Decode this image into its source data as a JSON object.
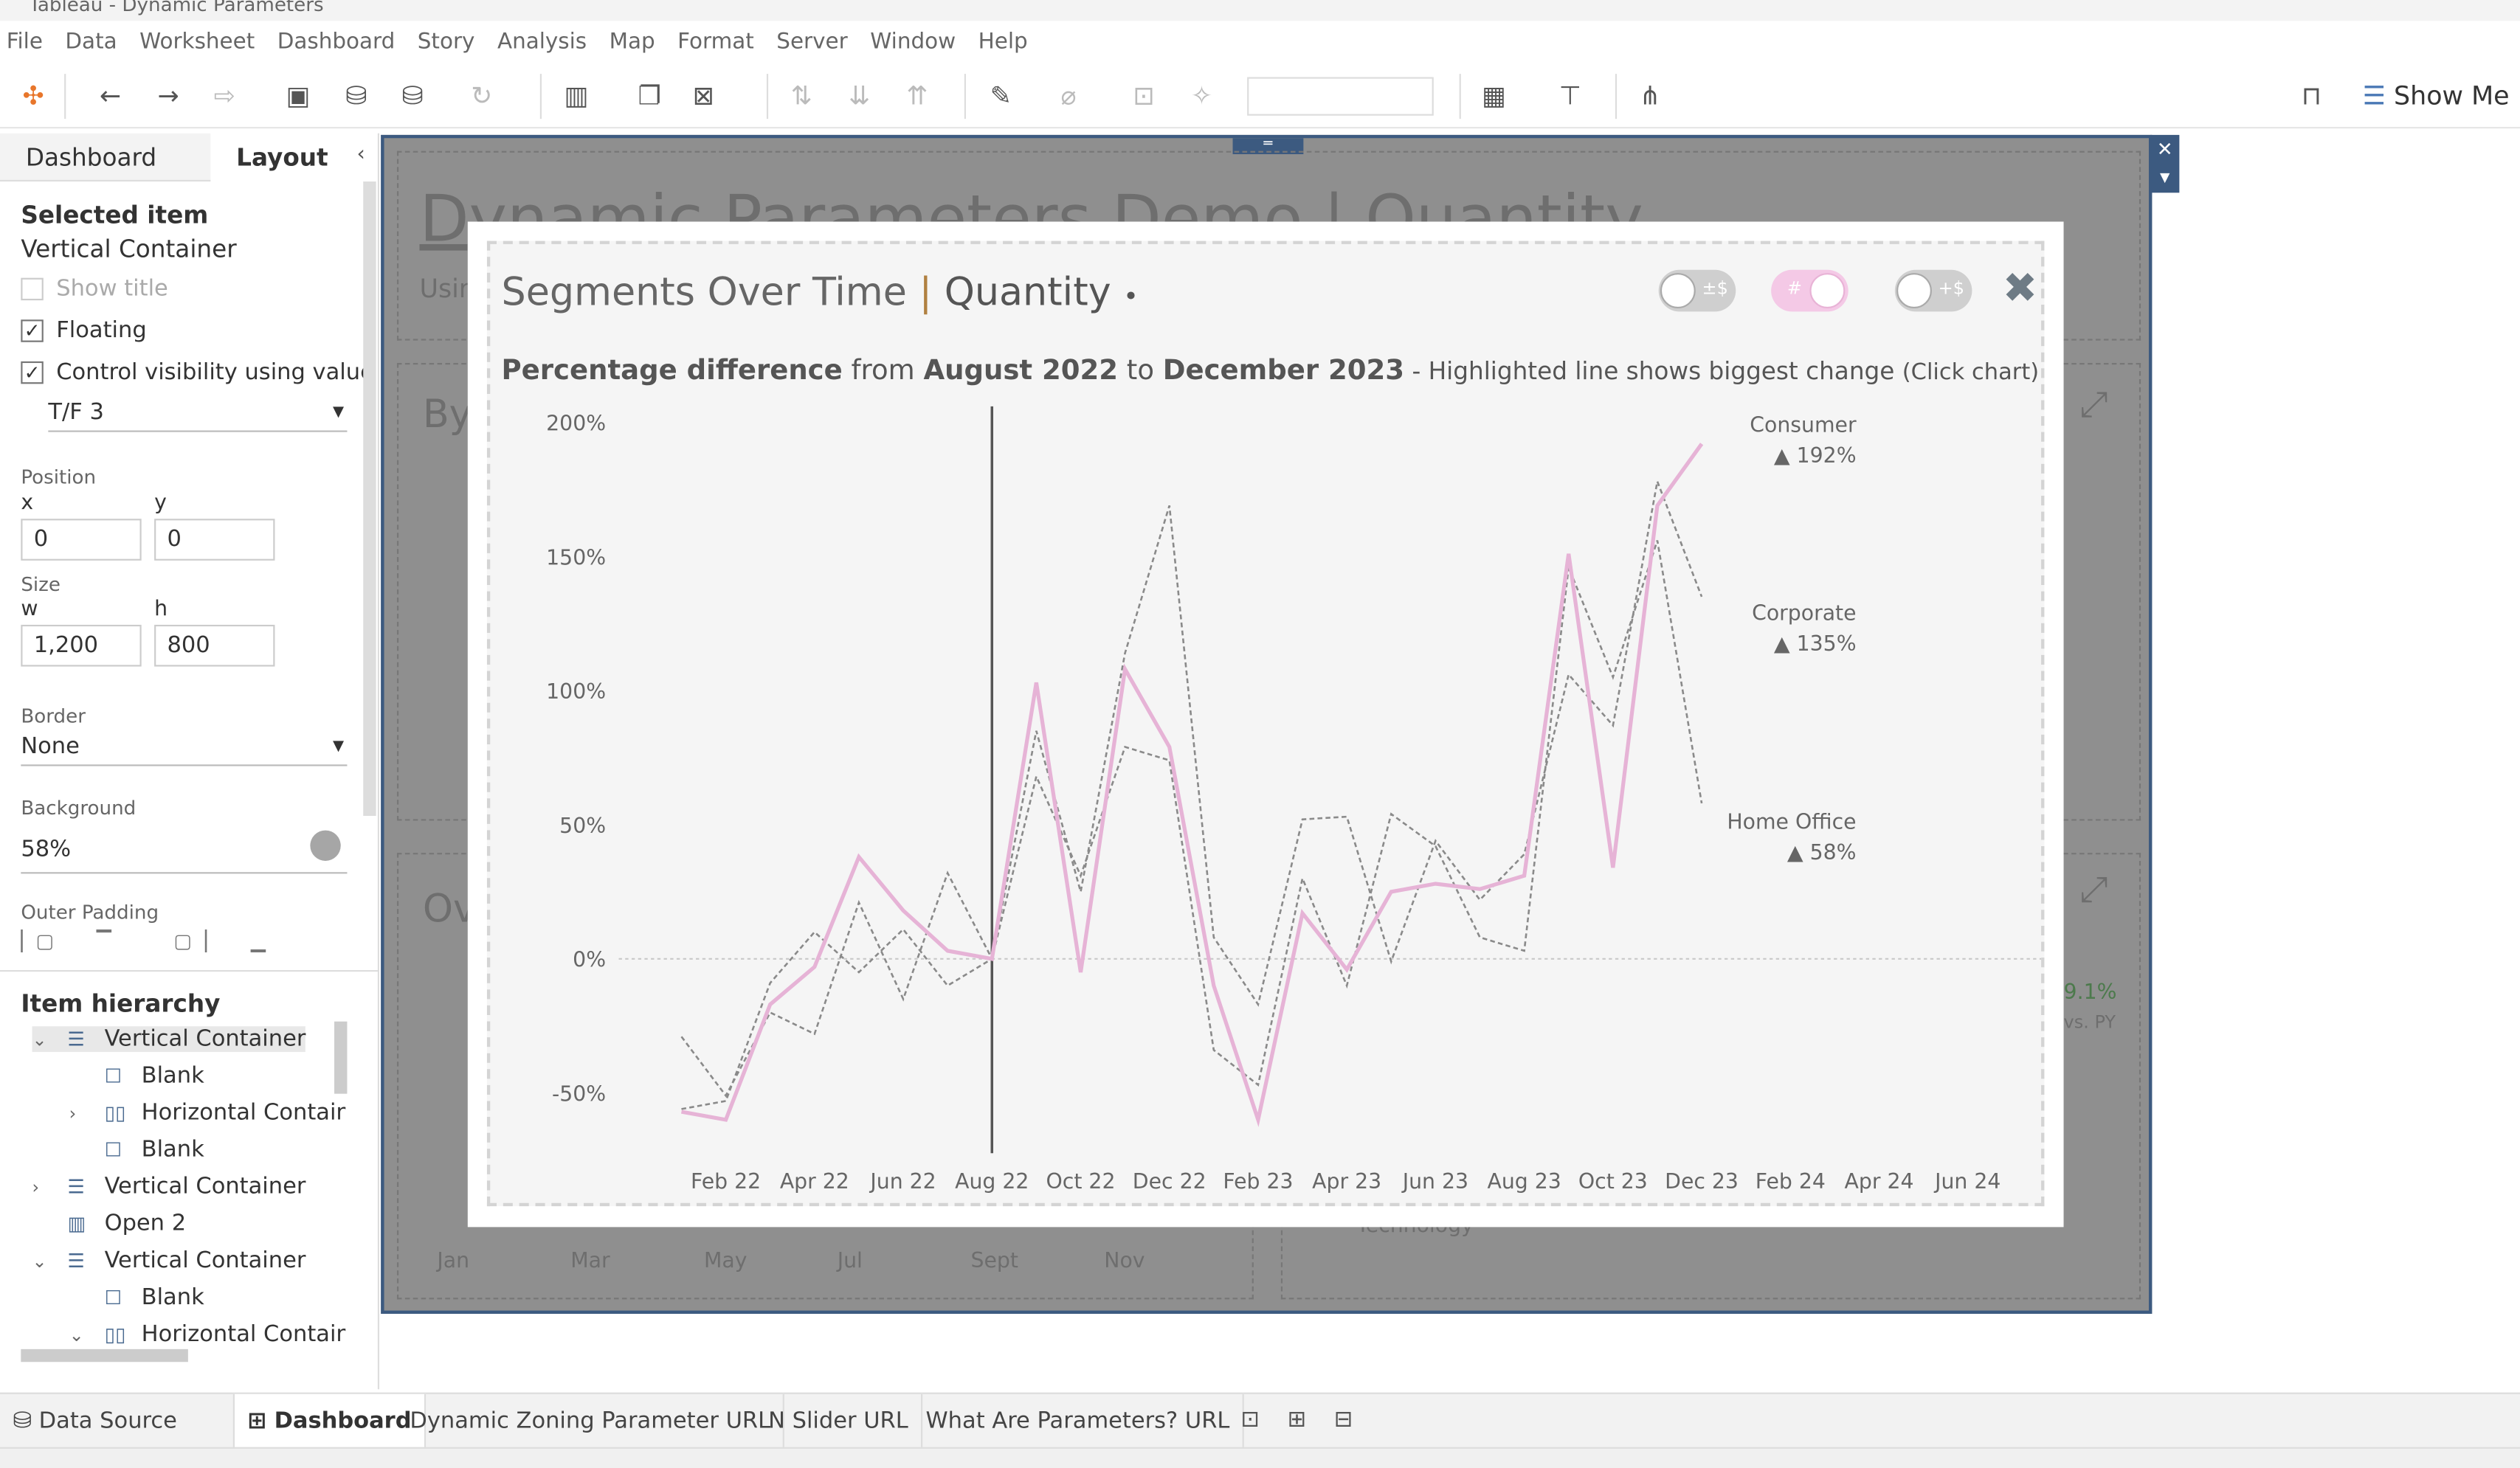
{
  "window": {
    "title": "Tableau - Dynamic Parameters"
  },
  "menu": [
    "File",
    "Data",
    "Worksheet",
    "Dashboard",
    "Story",
    "Analysis",
    "Map",
    "Format",
    "Server",
    "Window",
    "Help"
  ],
  "toolbar": {
    "show_me": "Show Me"
  },
  "left_panel": {
    "tabs": [
      "Dashboard",
      "Layout"
    ],
    "selected_item_heading": "Selected item",
    "selected_item": "Vertical Container",
    "show_title": "Show title",
    "floating": "Floating",
    "control_visibility": "Control visibility using value",
    "visibility_value": "T/F 3",
    "position_label": "Position",
    "x_label": "x",
    "x_value": "0",
    "y_label": "y",
    "y_value": "0",
    "size_label": "Size",
    "w_label": "w",
    "w_value": "1,200",
    "h_label": "h",
    "h_value": "800",
    "border_label": "Border",
    "border_value": "None",
    "background_label": "Background",
    "background_value": "58%",
    "outer_padding_label": "Outer Padding",
    "item_hierarchy_label": "Item hierarchy",
    "hierarchy": [
      {
        "label": "Vertical Container",
        "icon": "vertical-container-icon",
        "chev": "⌄",
        "depth": 0,
        "selected": true
      },
      {
        "label": "Blank",
        "icon": "blank-icon",
        "chev": "",
        "depth": 1
      },
      {
        "label": "Horizontal Contain",
        "icon": "horizontal-container-icon",
        "chev": "›",
        "depth": 1
      },
      {
        "label": "Blank",
        "icon": "blank-icon",
        "chev": "",
        "depth": 1
      },
      {
        "label": "Vertical Container",
        "icon": "vertical-container-icon",
        "chev": "›",
        "depth": 0
      },
      {
        "label": "Open 2",
        "icon": "sheet-icon",
        "chev": "",
        "depth": 0
      },
      {
        "label": "Vertical Container",
        "icon": "vertical-container-icon",
        "chev": "⌄",
        "depth": 0
      },
      {
        "label": "Blank",
        "icon": "blank-icon",
        "chev": "",
        "depth": 1
      },
      {
        "label": "Horizontal Contain",
        "icon": "horizontal-container-icon",
        "chev": "⌄",
        "depth": 1
      }
    ]
  },
  "background_dashboard": {
    "title": "Dynamic Parameters Demo | Quantity",
    "subtitle": "Usir",
    "section1": "By",
    "section2": "Ov",
    "months": [
      "Jan",
      "Mar",
      "May",
      "Jul",
      "Sept",
      "Nov"
    ],
    "kpi": "9.1%",
    "kpi_sub": "vs. PY",
    "category": "Technology"
  },
  "overlay": {
    "title_main": "Segments Over Time",
    "title_measure": "Quantity",
    "title_dot": "•",
    "toggles": [
      {
        "text": "±$",
        "on": false
      },
      {
        "text": "#",
        "on": true
      },
      {
        "text": "+$",
        "on": false
      }
    ],
    "subtitle": {
      "p1": "Percentage difference",
      "p2": " from ",
      "p3": "August 2022",
      "p4": " to ",
      "p5": "December 2023",
      "p6": " - Highlighted line shows biggest change ",
      "p7": "(Click chart)"
    }
  },
  "chart_data": {
    "type": "line",
    "title": "Percentage difference from August 2022 to December 2023",
    "x": [
      "Jan 22",
      "Feb 22",
      "Mar 22",
      "Apr 22",
      "May 22",
      "Jun 22",
      "Jul 22",
      "Aug 22",
      "Sep 22",
      "Oct 22",
      "Nov 22",
      "Dec 22",
      "Jan 23",
      "Feb 23",
      "Mar 23",
      "Apr 23",
      "May 23",
      "Jun 23",
      "Jul 23",
      "Aug 23",
      "Sep 23",
      "Oct 23",
      "Nov 23",
      "Dec 23"
    ],
    "xtick_labels": [
      "Feb 22",
      "Apr 22",
      "Jun 22",
      "Aug 22",
      "Oct 22",
      "Dec 22",
      "Feb 23",
      "Apr 23",
      "Jun 23",
      "Aug 23",
      "Oct 23",
      "Dec 23",
      "Feb 24",
      "Apr 24",
      "Jun 24"
    ],
    "ytick_labels": [
      "200%",
      "150%",
      "100%",
      "50%",
      "0%",
      "-50%"
    ],
    "yticks": [
      200,
      150,
      100,
      50,
      0,
      -50
    ],
    "ylim": [
      -65,
      210
    ],
    "reference_month": "Aug 22",
    "series": [
      {
        "name": "Consumer",
        "label": "▲ 192%",
        "highlight": true,
        "color": "#e6b3d6",
        "values": [
          -57,
          -60,
          -17,
          -3,
          38,
          18,
          3,
          0,
          103,
          -5,
          108,
          79,
          -10,
          -60,
          17,
          -4,
          25,
          28,
          26,
          31,
          151,
          34,
          169,
          192
        ]
      },
      {
        "name": "Corporate",
        "label": "▲ 135%",
        "highlight": false,
        "color": "#8a8a8a",
        "values": [
          -56,
          -53,
          -9,
          10,
          -5,
          11,
          -10,
          0,
          85,
          25,
          114,
          169,
          8,
          -17,
          52,
          53,
          -1,
          44,
          22,
          39,
          106,
          87,
          178,
          135
        ]
      },
      {
        "name": "Home Office",
        "label": "▲ 58%",
        "highlight": false,
        "color": "#8a8a8a",
        "values": [
          -29,
          -51,
          -20,
          -28,
          21,
          -15,
          32,
          0,
          68,
          31,
          79,
          74,
          -34,
          -47,
          30,
          -10,
          54,
          42,
          8,
          3,
          146,
          105,
          156,
          58
        ]
      }
    ]
  },
  "bottom_tabs": {
    "data_source": "Data Source",
    "tabs": [
      "Dashboard",
      "Dynamic Zoning Parameter URL",
      "N Slider URL",
      "What Are Parameters? URL"
    ]
  }
}
